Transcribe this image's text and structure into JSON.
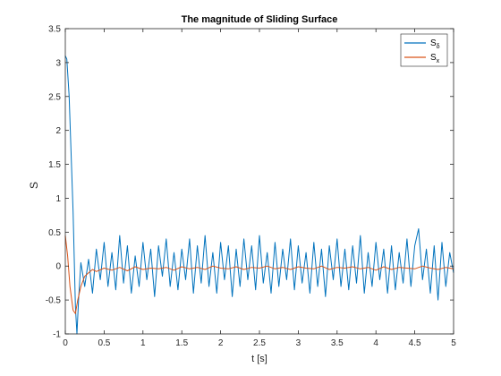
{
  "chart_data": {
    "type": "line",
    "title": "The magnitude of Sliding Surface",
    "xlabel": "t [s]",
    "ylabel": "S",
    "xlim": [
      0,
      5
    ],
    "ylim": [
      -1,
      3.5
    ],
    "xticks": [
      0,
      0.5,
      1,
      1.5,
      2,
      2.5,
      3,
      3.5,
      4,
      4.5,
      5
    ],
    "xtick_labels": [
      "0",
      "0.5",
      "1",
      "1.5",
      "2",
      "2.5",
      "3",
      "3.5",
      "4",
      "4.5",
      "5"
    ],
    "yticks": [
      -1,
      -0.5,
      0,
      0.5,
      1,
      1.5,
      2,
      2.5,
      3,
      3.5
    ],
    "ytick_labels": [
      "-1",
      "-0.5",
      "0",
      "0.5",
      "1",
      "1.5",
      "2",
      "2.5",
      "3",
      "3.5"
    ],
    "grid": false,
    "legend_position": "top-right",
    "series": [
      {
        "name": "S",
        "subscript": "δ",
        "color": "#0072BD",
        "x": [
          0,
          0.02,
          0.05,
          0.1,
          0.13,
          0.15,
          0.17,
          0.2,
          0.25,
          0.3,
          0.35,
          0.4,
          0.45,
          0.5,
          0.55,
          0.6,
          0.65,
          0.7,
          0.75,
          0.8,
          0.85,
          0.9,
          0.95,
          1.0,
          1.05,
          1.1,
          1.15,
          1.2,
          1.25,
          1.3,
          1.35,
          1.4,
          1.45,
          1.5,
          1.55,
          1.6,
          1.65,
          1.7,
          1.75,
          1.8,
          1.85,
          1.9,
          1.95,
          2.0,
          2.05,
          2.1,
          2.15,
          2.2,
          2.25,
          2.3,
          2.35,
          2.4,
          2.45,
          2.5,
          2.55,
          2.6,
          2.65,
          2.7,
          2.75,
          2.8,
          2.85,
          2.9,
          2.95,
          3.0,
          3.05,
          3.1,
          3.15,
          3.2,
          3.25,
          3.3,
          3.35,
          3.4,
          3.45,
          3.5,
          3.55,
          3.6,
          3.65,
          3.7,
          3.75,
          3.8,
          3.85,
          3.9,
          3.95,
          4.0,
          4.05,
          4.1,
          4.15,
          4.2,
          4.25,
          4.3,
          4.35,
          4.4,
          4.45,
          4.5,
          4.55,
          4.6,
          4.65,
          4.7,
          4.75,
          4.8,
          4.85,
          4.9,
          4.95,
          5.0
        ],
        "y": [
          3.1,
          3.05,
          2.5,
          0.8,
          -0.6,
          -1.0,
          -0.5,
          0.05,
          -0.3,
          0.1,
          -0.4,
          0.25,
          -0.2,
          0.35,
          -0.3,
          0.2,
          -0.35,
          0.45,
          -0.25,
          0.3,
          -0.4,
          0.15,
          -0.3,
          0.35,
          -0.2,
          0.25,
          -0.45,
          0.3,
          -0.15,
          0.4,
          -0.3,
          0.2,
          -0.35,
          0.25,
          -0.2,
          0.4,
          -0.4,
          0.3,
          -0.25,
          0.45,
          -0.3,
          0.2,
          -0.4,
          0.35,
          -0.2,
          0.3,
          -0.45,
          0.25,
          -0.3,
          0.4,
          -0.2,
          0.3,
          -0.35,
          0.45,
          -0.25,
          0.2,
          -0.4,
          0.35,
          -0.3,
          0.25,
          -0.2,
          0.4,
          -0.35,
          0.3,
          -0.25,
          0.2,
          -0.4,
          0.35,
          -0.3,
          0.25,
          -0.45,
          0.3,
          -0.2,
          0.4,
          -0.3,
          0.25,
          -0.35,
          0.3,
          -0.25,
          0.45,
          -0.4,
          0.2,
          -0.3,
          0.35,
          -0.2,
          0.25,
          -0.4,
          0.3,
          -0.35,
          0.2,
          -0.25,
          0.4,
          -0.3,
          0.3,
          0.55,
          -0.2,
          0.25,
          -0.4,
          0.3,
          -0.5,
          0.35,
          -0.3,
          0.2,
          -0.1
        ]
      },
      {
        "name": "S",
        "subscript": "x",
        "color": "#D95319",
        "x": [
          0,
          0.03,
          0.06,
          0.1,
          0.13,
          0.16,
          0.2,
          0.25,
          0.3,
          0.35,
          0.4,
          0.5,
          0.6,
          0.7,
          0.8,
          0.9,
          1.0,
          1.1,
          1.2,
          1.3,
          1.4,
          1.5,
          1.6,
          1.7,
          1.8,
          1.9,
          2.0,
          2.1,
          2.2,
          2.3,
          2.4,
          2.5,
          2.6,
          2.7,
          2.8,
          2.9,
          3.0,
          3.1,
          3.2,
          3.3,
          3.4,
          3.5,
          3.6,
          3.7,
          3.8,
          3.9,
          4.0,
          4.1,
          4.2,
          4.3,
          4.4,
          4.5,
          4.6,
          4.7,
          4.8,
          4.9,
          5.0
        ],
        "y": [
          0.45,
          0.15,
          -0.3,
          -0.65,
          -0.7,
          -0.5,
          -0.3,
          -0.15,
          -0.1,
          -0.05,
          -0.08,
          -0.03,
          -0.06,
          -0.02,
          -0.07,
          -0.01,
          -0.05,
          -0.03,
          -0.04,
          -0.02,
          -0.06,
          -0.01,
          -0.04,
          -0.02,
          -0.05,
          0.0,
          -0.03,
          -0.04,
          -0.01,
          -0.05,
          -0.02,
          -0.03,
          0.0,
          -0.04,
          -0.02,
          -0.05,
          -0.01,
          -0.03,
          -0.04,
          0.0,
          -0.05,
          -0.02,
          -0.03,
          -0.01,
          -0.04,
          -0.02,
          -0.06,
          -0.01,
          -0.05,
          -0.02,
          -0.03,
          -0.04,
          0.0,
          -0.03,
          -0.05,
          -0.02,
          -0.04
        ]
      }
    ]
  }
}
